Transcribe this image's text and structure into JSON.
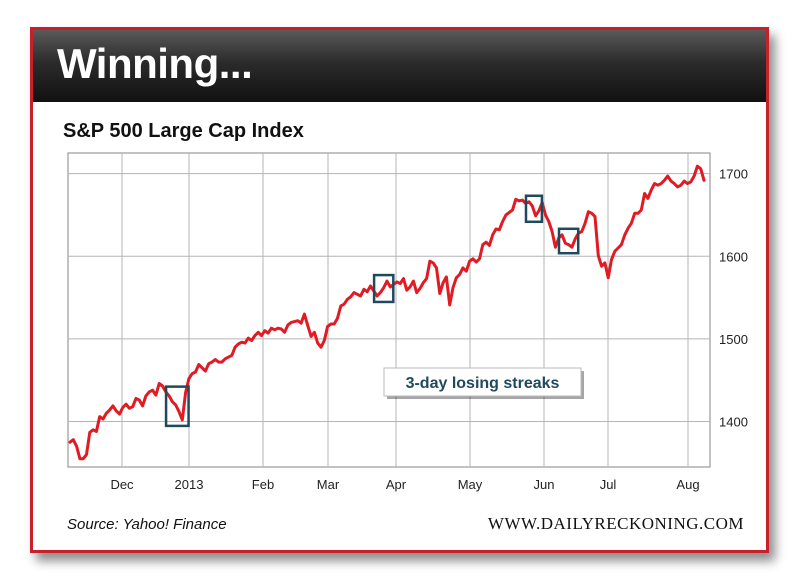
{
  "header": {
    "title": "Winning..."
  },
  "chart_title": "S&P 500 Large Cap Index",
  "source": "Source: Yahoo! Finance",
  "site": "WWW.DAILYRECKONING.COM",
  "annotation": "3-day losing streaks",
  "colors": {
    "line": "#e01b24",
    "frame": "#c8202a",
    "box": "#1f4a5e",
    "grid": "#b5b5b5"
  },
  "chart_data": {
    "type": "line",
    "title": "S&P 500 Large Cap Index",
    "xlabel": "",
    "ylabel": "",
    "ylim": [
      1345,
      1725
    ],
    "y_ticks": [
      1400,
      1500,
      1600,
      1700
    ],
    "x_ticks": [
      "Dec",
      "2013",
      "Feb",
      "Mar",
      "Apr",
      "May",
      "Jun",
      "Jul",
      "Aug"
    ],
    "grid": true,
    "series": [
      {
        "values": [
          1375,
          1378,
          1370,
          1355,
          1355,
          1360,
          1387,
          1390,
          1388,
          1406,
          1403,
          1410,
          1414,
          1419,
          1413,
          1409,
          1417,
          1421,
          1416,
          1418,
          1428,
          1426,
          1419,
          1431,
          1436,
          1438,
          1432,
          1446,
          1443,
          1436,
          1431,
          1424,
          1420,
          1412,
          1402,
          1435,
          1452,
          1458,
          1460,
          1469,
          1465,
          1461,
          1470,
          1472,
          1475,
          1472,
          1472,
          1476,
          1478,
          1480,
          1490,
          1494,
          1496,
          1495,
          1501,
          1498,
          1504,
          1508,
          1504,
          1510,
          1507,
          1513,
          1511,
          1513,
          1512,
          1508,
          1517,
          1520,
          1521,
          1522,
          1519,
          1530,
          1516,
          1503,
          1508,
          1495,
          1490,
          1498,
          1515,
          1518,
          1518,
          1525,
          1540,
          1542,
          1548,
          1551,
          1556,
          1554,
          1552,
          1560,
          1557,
          1564,
          1558,
          1552,
          1556,
          1562,
          1570,
          1563,
          1566,
          1569,
          1567,
          1573,
          1559,
          1563,
          1570,
          1556,
          1561,
          1568,
          1573,
          1594,
          1592,
          1586,
          1555,
          1568,
          1575,
          1541,
          1562,
          1574,
          1578,
          1586,
          1582,
          1594,
          1597,
          1593,
          1597,
          1614,
          1617,
          1613,
          1626,
          1633,
          1632,
          1642,
          1650,
          1653,
          1656,
          1669,
          1667,
          1668,
          1664,
          1666,
          1661,
          1649,
          1655,
          1665,
          1650,
          1642,
          1630,
          1611,
          1622,
          1626,
          1616,
          1614,
          1611,
          1621,
          1628,
          1630,
          1640,
          1654,
          1652,
          1648,
          1601,
          1588,
          1592,
          1574,
          1596,
          1606,
          1610,
          1614,
          1626,
          1634,
          1640,
          1652,
          1652,
          1656,
          1676,
          1670,
          1680,
          1688,
          1686,
          1688,
          1692,
          1697,
          1691,
          1688,
          1684,
          1686,
          1691,
          1688,
          1690,
          1697,
          1709,
          1706,
          1692
        ]
      }
    ],
    "annotations": [
      {
        "label": "3-day losing streaks"
      }
    ]
  }
}
